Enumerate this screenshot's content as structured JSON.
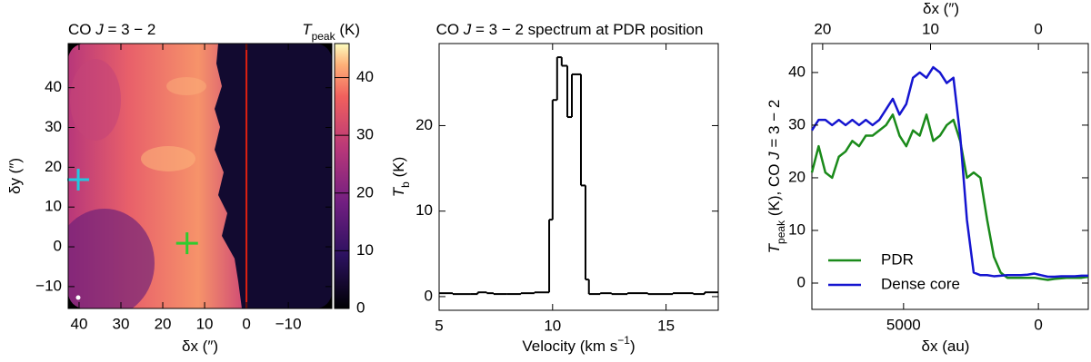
{
  "chart_data": [
    {
      "type": "image",
      "title": [
        {
          "text": "CO "
        },
        {
          "text": "J",
          "italic": true
        },
        {
          "text": " = 3 − 2"
        }
      ],
      "colorbar_label": [
        {
          "text": "T",
          "italic": true
        },
        {
          "text": "peak",
          "sub": true
        },
        {
          "text": " (K)"
        }
      ],
      "xlabel": [
        {
          "text": "δx (″)"
        }
      ],
      "ylabel": [
        {
          "text": "δy (″)"
        }
      ],
      "xlim": [
        42.6,
        -20.4
      ],
      "ylim": [
        -15.5,
        51.1
      ],
      "xticks": [
        40,
        30,
        20,
        10,
        0,
        {
          "value": -10,
          "label": "−10"
        }
      ],
      "yticks": [
        {
          "value": -10,
          "label": "−10"
        },
        0,
        10,
        20,
        30,
        40
      ],
      "clim": [
        0,
        45.9
      ],
      "cticks": [
        0,
        10,
        20,
        30,
        40
      ],
      "colormap": "magma",
      "markers": [
        {
          "x": 40.2,
          "y": 16.9,
          "color": "#22c8e0"
        },
        {
          "x": 14.2,
          "y": 0.9,
          "color": "#2ecc2e"
        }
      ],
      "vline": {
        "x": 0,
        "color": "#e02010"
      }
    },
    {
      "type": "step",
      "title": [
        {
          "text": "CO "
        },
        {
          "text": "J",
          "italic": true
        },
        {
          "text": " = 3 − 2 spectrum at PDR position"
        }
      ],
      "xlabel": [
        {
          "text": "Velocity (km s"
        },
        {
          "text": "−1",
          "sup": true
        },
        {
          "text": ")"
        }
      ],
      "ylabel": [
        {
          "text": "T",
          "italic": true
        },
        {
          "text": "b",
          "sub": true
        },
        {
          "text": " (K)"
        }
      ],
      "xlim": [
        5,
        17.3
      ],
      "ylim": [
        -1.6,
        29.6
      ],
      "xticks": [
        5,
        10,
        15
      ],
      "yticks": [
        0,
        10,
        20
      ],
      "color": "#000000",
      "x": [
        5.0,
        5.6,
        6.4,
        6.7,
        7.1,
        7.4,
        8.0,
        8.6,
        9.2,
        9.85,
        10.0,
        10.2,
        10.4,
        10.65,
        10.85,
        11.25,
        11.45,
        11.6,
        12.1,
        12.6,
        13.3,
        14.2,
        15.3,
        16.2,
        16.7
      ],
      "values": [
        0.4,
        0.3,
        0.3,
        0.5,
        0.4,
        0.3,
        0.3,
        0.4,
        0.5,
        9,
        23,
        28,
        27,
        21,
        26,
        13,
        2,
        0.3,
        0.4,
        0.3,
        0.4,
        0.3,
        0.4,
        0.3,
        0.5
      ]
    },
    {
      "type": "line",
      "xlabel": [
        {
          "text": "δx (au)"
        }
      ],
      "x2label": [
        {
          "text": "δx (″)"
        }
      ],
      "ylabel": [
        {
          "text": "T",
          "italic": true
        },
        {
          "text": "peak",
          "sub": true
        },
        {
          "text": " (K), CO "
        },
        {
          "text": "J",
          "italic": true
        },
        {
          "text": " = 3 − 2"
        }
      ],
      "xlim": [
        8400,
        -1850
      ],
      "x2lim": [
        21,
        -4.625
      ],
      "ylim": [
        -5,
        45.5
      ],
      "xticks": [
        5000,
        0
      ],
      "x2ticks": [
        20,
        10,
        0
      ],
      "yticks": [
        0,
        10,
        20,
        30,
        40
      ],
      "legend": "lower left",
      "x": [
        8400,
        8150,
        7900,
        7650,
        7400,
        7150,
        6900,
        6650,
        6400,
        6150,
        5900,
        5650,
        5400,
        5150,
        4900,
        4650,
        4400,
        4150,
        3900,
        3650,
        3400,
        3150,
        2900,
        2650,
        2400,
        2150,
        1900,
        1650,
        1400,
        1150,
        900,
        650,
        400,
        150,
        -100,
        -350,
        -600,
        -850,
        -1100,
        -1350,
        -1600,
        -1850
      ],
      "series": [
        {
          "name": "PDR",
          "color": "#1a8a1a",
          "values": [
            21,
            26,
            21,
            20,
            24,
            25,
            27,
            26,
            28,
            28,
            29,
            30,
            32,
            28,
            26,
            29,
            28,
            32,
            27,
            28,
            30,
            31,
            27,
            20,
            21,
            20,
            12,
            5,
            2,
            1,
            1,
            1,
            1,
            1,
            0.8,
            0.6,
            0.8,
            0.9,
            1,
            1,
            1,
            1.2
          ]
        },
        {
          "name": "Dense core",
          "color": "#1515d0",
          "values": [
            29,
            31,
            31,
            30,
            31,
            30,
            31,
            30,
            31,
            30,
            31,
            33,
            35,
            32,
            34,
            39,
            40,
            39,
            41,
            40,
            38,
            39,
            28,
            12,
            2,
            1.5,
            1.5,
            1.3,
            1.4,
            1.5,
            1.5,
            1.5,
            1.6,
            1.8,
            1.5,
            1.2,
            1.2,
            1.3,
            1.3,
            1.3,
            1.4,
            1.4
          ]
        }
      ]
    }
  ]
}
